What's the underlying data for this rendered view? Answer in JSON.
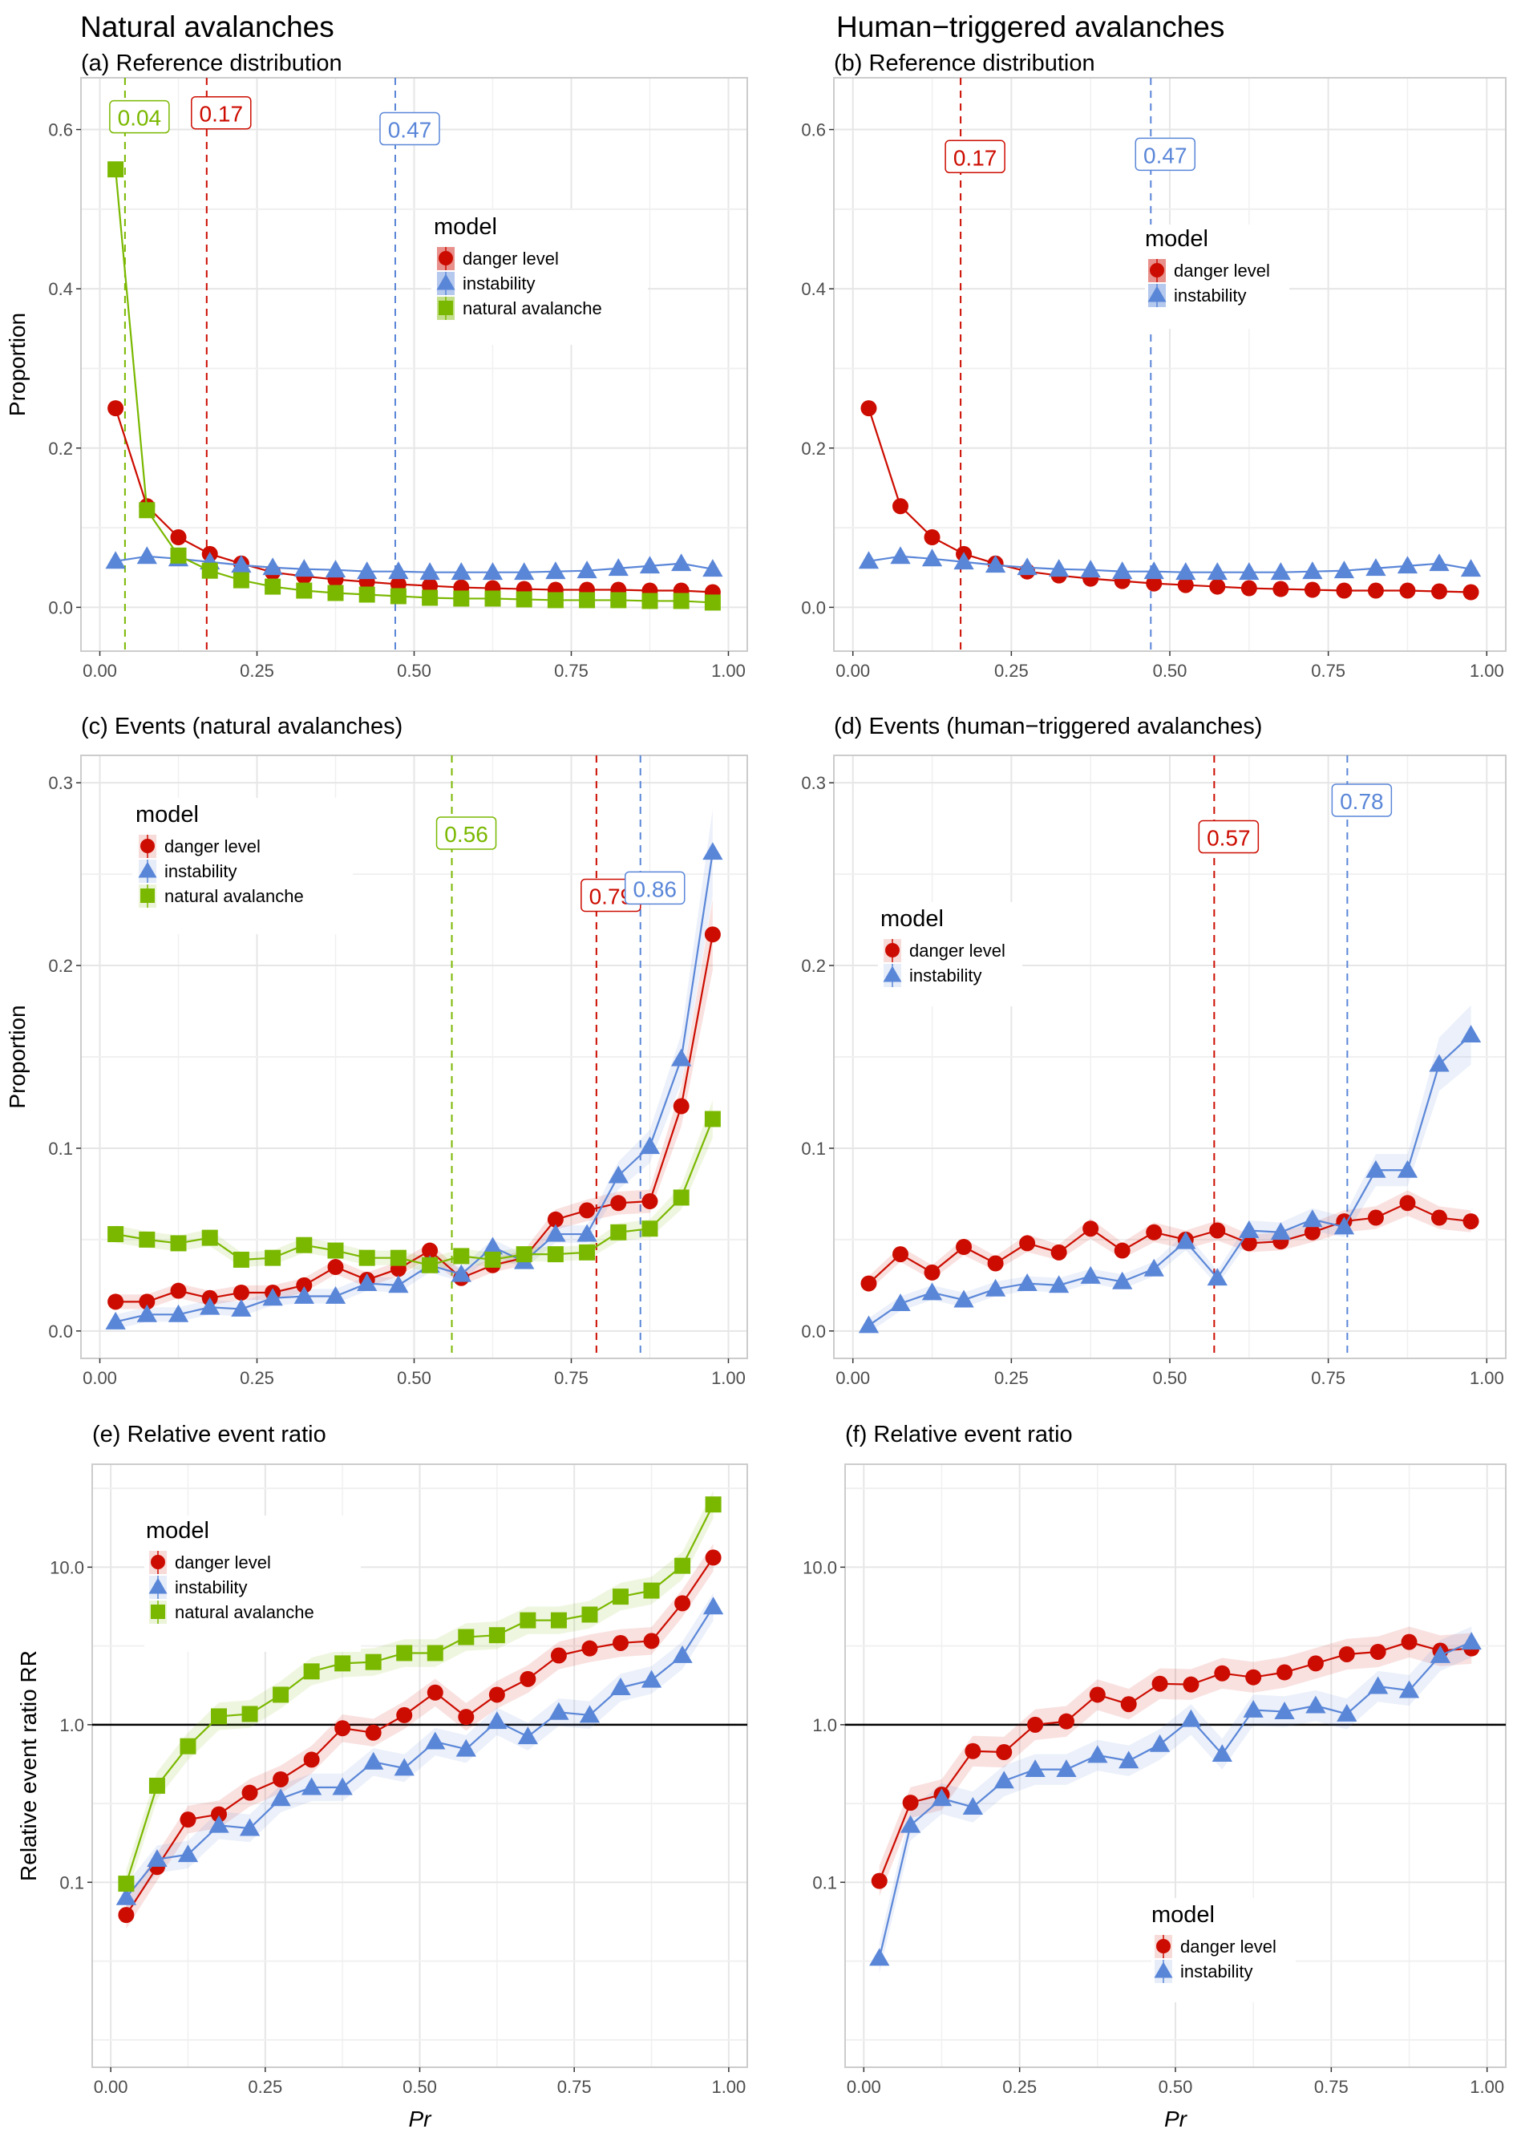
{
  "figure": {
    "column_titles": [
      "Natural avalanches",
      "Human−triggered avalanches"
    ],
    "x_axis_title": "Pr",
    "colors": {
      "danger level": "#cc0c00",
      "instability": "#5a86d8",
      "natural avalanche": "#7ab800",
      "reference_line": "#000000"
    }
  },
  "chart_data": [
    {
      "id": "a",
      "type": "line",
      "title": "(a) Reference distribution",
      "xlabel": "",
      "ylabel": "Proportion",
      "xlim": [
        -0.03,
        1.0
      ],
      "ylim": [
        -0.055,
        0.665
      ],
      "yscale": "linear",
      "xticks": [
        "0.00",
        "0.25",
        "0.50",
        "0.75",
        "1.00"
      ],
      "yticks": [
        "0.0",
        "0.2",
        "0.4",
        "0.6"
      ],
      "ytick_values": [
        0.0,
        0.2,
        0.4,
        0.6
      ],
      "grid": true,
      "legend": {
        "title": "model",
        "position": "center-right",
        "entries": [
          "danger level",
          "instability",
          "natural avalanche"
        ]
      },
      "x": [
        0.025,
        0.075,
        0.125,
        0.175,
        0.225,
        0.275,
        0.325,
        0.375,
        0.425,
        0.475,
        0.525,
        0.575,
        0.625,
        0.675,
        0.725,
        0.775,
        0.825,
        0.875,
        0.925,
        0.975
      ],
      "series": [
        {
          "name": "danger level",
          "marker": "circle",
          "values": [
            0.25,
            0.127,
            0.088,
            0.067,
            0.055,
            0.044,
            0.039,
            0.035,
            0.032,
            0.029,
            0.027,
            0.025,
            0.024,
            0.023,
            0.022,
            0.022,
            0.022,
            0.021,
            0.021,
            0.019
          ]
        },
        {
          "name": "instability",
          "marker": "triangle",
          "values": [
            0.058,
            0.064,
            0.061,
            0.057,
            0.053,
            0.05,
            0.048,
            0.047,
            0.045,
            0.045,
            0.044,
            0.044,
            0.044,
            0.044,
            0.045,
            0.046,
            0.049,
            0.052,
            0.055,
            0.048
          ]
        },
        {
          "name": "natural avalanche",
          "marker": "square",
          "values": [
            0.55,
            0.122,
            0.065,
            0.046,
            0.034,
            0.026,
            0.021,
            0.018,
            0.016,
            0.014,
            0.012,
            0.011,
            0.011,
            0.01,
            0.009,
            0.009,
            0.009,
            0.008,
            0.008,
            0.006
          ]
        }
      ],
      "vlines": [
        {
          "series": "natural avalanche",
          "x": 0.04,
          "label": "0.04",
          "label_y": 0.615
        },
        {
          "series": "danger level",
          "x": 0.17,
          "label": "0.17",
          "label_y": 0.62
        },
        {
          "series": "instability",
          "x": 0.47,
          "label": "0.47",
          "label_y": 0.6
        }
      ]
    },
    {
      "id": "b",
      "type": "line",
      "title": "(b) Reference distribution",
      "xlabel": "",
      "ylabel": "",
      "xlim": [
        -0.03,
        1.0
      ],
      "ylim": [
        -0.055,
        0.665
      ],
      "yscale": "linear",
      "xticks": [
        "0.00",
        "0.25",
        "0.50",
        "0.75",
        "1.00"
      ],
      "yticks": [
        "0.0",
        "0.2",
        "0.4",
        "0.6"
      ],
      "ytick_values": [
        0.0,
        0.2,
        0.4,
        0.6
      ],
      "grid": true,
      "legend": {
        "title": "model",
        "position": "center",
        "entries": [
          "danger level",
          "instability"
        ]
      },
      "x": [
        0.025,
        0.075,
        0.125,
        0.175,
        0.225,
        0.275,
        0.325,
        0.375,
        0.425,
        0.475,
        0.525,
        0.575,
        0.625,
        0.675,
        0.725,
        0.775,
        0.825,
        0.875,
        0.925,
        0.975
      ],
      "series": [
        {
          "name": "danger level",
          "marker": "circle",
          "values": [
            0.25,
            0.127,
            0.088,
            0.067,
            0.055,
            0.045,
            0.04,
            0.036,
            0.033,
            0.03,
            0.028,
            0.026,
            0.024,
            0.023,
            0.022,
            0.021,
            0.021,
            0.021,
            0.02,
            0.019
          ]
        },
        {
          "name": "instability",
          "marker": "triangle",
          "values": [
            0.058,
            0.064,
            0.061,
            0.057,
            0.053,
            0.05,
            0.048,
            0.047,
            0.045,
            0.045,
            0.044,
            0.044,
            0.044,
            0.044,
            0.045,
            0.046,
            0.049,
            0.052,
            0.055,
            0.048
          ]
        }
      ],
      "vlines": [
        {
          "series": "danger level",
          "x": 0.17,
          "label": "0.17",
          "label_y": 0.565
        },
        {
          "series": "instability",
          "x": 0.47,
          "label": "0.47",
          "label_y": 0.568
        }
      ]
    },
    {
      "id": "c",
      "type": "line",
      "title": "(c) Events (natural avalanches)",
      "xlabel": "",
      "ylabel": "Proportion",
      "xlim": [
        -0.03,
        1.0
      ],
      "ylim": [
        -0.015,
        0.315
      ],
      "yscale": "linear",
      "xticks": [
        "0.00",
        "0.25",
        "0.50",
        "0.75",
        "1.00"
      ],
      "yticks": [
        "0.0",
        "0.1",
        "0.2",
        "0.3"
      ],
      "ytick_values": [
        0.0,
        0.1,
        0.2,
        0.3
      ],
      "grid": true,
      "legend": {
        "title": "model",
        "position": "top-left",
        "entries": [
          "danger level",
          "instability",
          "natural avalanche"
        ]
      },
      "x": [
        0.025,
        0.075,
        0.125,
        0.175,
        0.225,
        0.275,
        0.325,
        0.375,
        0.425,
        0.475,
        0.525,
        0.575,
        0.625,
        0.675,
        0.725,
        0.775,
        0.825,
        0.875,
        0.925,
        0.975
      ],
      "series": [
        {
          "name": "danger level",
          "marker": "circle",
          "values": [
            0.016,
            0.016,
            0.022,
            0.018,
            0.021,
            0.021,
            0.025,
            0.035,
            0.028,
            0.034,
            0.044,
            0.029,
            0.036,
            0.04,
            0.061,
            0.066,
            0.07,
            0.071,
            0.123,
            0.217
          ]
        },
        {
          "name": "instability",
          "marker": "triangle",
          "values": [
            0.005,
            0.009,
            0.009,
            0.013,
            0.012,
            0.018,
            0.019,
            0.019,
            0.026,
            0.025,
            0.036,
            0.031,
            0.046,
            0.038,
            0.053,
            0.053,
            0.085,
            0.101,
            0.149,
            0.262
          ]
        },
        {
          "name": "natural avalanche",
          "marker": "square",
          "values": [
            0.053,
            0.05,
            0.048,
            0.051,
            0.039,
            0.04,
            0.047,
            0.044,
            0.04,
            0.04,
            0.036,
            0.041,
            0.039,
            0.042,
            0.042,
            0.043,
            0.054,
            0.056,
            0.073,
            0.116
          ]
        }
      ],
      "vlines": [
        {
          "series": "natural avalanche",
          "x": 0.56,
          "label": "0.56",
          "label_y": 0.272
        },
        {
          "series": "danger level",
          "x": 0.79,
          "label": "0.79",
          "label_y": 0.238
        },
        {
          "series": "instability",
          "x": 0.86,
          "label": "0.86",
          "label_y": 0.242
        }
      ]
    },
    {
      "id": "d",
      "type": "line",
      "title": "(d) Events (human−triggered avalanches)",
      "xlabel": "",
      "ylabel": "",
      "xlim": [
        -0.03,
        1.0
      ],
      "ylim": [
        -0.015,
        0.315
      ],
      "yscale": "linear",
      "xticks": [
        "0.00",
        "0.25",
        "0.50",
        "0.75",
        "1.00"
      ],
      "yticks": [
        "0.0",
        "0.1",
        "0.2",
        "0.3"
      ],
      "ytick_values": [
        0.0,
        0.1,
        0.2,
        0.3
      ],
      "grid": true,
      "legend": {
        "title": "model",
        "position": "center-left",
        "entries": [
          "danger level",
          "instability"
        ]
      },
      "x": [
        0.025,
        0.075,
        0.125,
        0.175,
        0.225,
        0.275,
        0.325,
        0.375,
        0.425,
        0.475,
        0.525,
        0.575,
        0.625,
        0.675,
        0.725,
        0.775,
        0.825,
        0.875,
        0.925,
        0.975
      ],
      "series": [
        {
          "name": "danger level",
          "marker": "circle",
          "values": [
            0.026,
            0.042,
            0.032,
            0.046,
            0.037,
            0.048,
            0.043,
            0.056,
            0.044,
            0.054,
            0.05,
            0.055,
            0.048,
            0.049,
            0.054,
            0.06,
            0.062,
            0.07,
            0.062,
            0.06
          ]
        },
        {
          "name": "instability",
          "marker": "triangle",
          "values": [
            0.003,
            0.015,
            0.021,
            0.017,
            0.023,
            0.026,
            0.025,
            0.03,
            0.027,
            0.034,
            0.049,
            0.029,
            0.055,
            0.054,
            0.061,
            0.057,
            0.088,
            0.088,
            0.146,
            0.162
          ]
        }
      ],
      "vlines": [
        {
          "series": "danger level",
          "x": 0.57,
          "label": "0.57",
          "label_y": 0.27
        },
        {
          "series": "instability",
          "x": 0.78,
          "label": "0.78",
          "label_y": 0.29
        }
      ]
    },
    {
      "id": "e",
      "type": "line",
      "title": "(e) Relative event ratio",
      "xlabel": "Pr",
      "ylabel": "Relative event ratio RR",
      "xlim": [
        -0.03,
        1.0
      ],
      "ylim": [
        0.0067,
        45
      ],
      "yscale": "log",
      "xticks": [
        "0.00",
        "0.25",
        "0.50",
        "0.75",
        "1.00"
      ],
      "yticks": [
        "0.1",
        "1.0",
        "10.0"
      ],
      "ytick_values": [
        0.1,
        1.0,
        10.0
      ],
      "minor_gridlines": [
        0.01,
        0.0316,
        0.316,
        3.16,
        31.6
      ],
      "reference_line": 1.0,
      "grid": true,
      "legend": {
        "title": "model",
        "position": "top-left",
        "entries": [
          "danger level",
          "instability",
          "natural avalanche"
        ]
      },
      "x": [
        0.025,
        0.075,
        0.125,
        0.175,
        0.225,
        0.275,
        0.325,
        0.375,
        0.425,
        0.475,
        0.525,
        0.575,
        0.625,
        0.675,
        0.725,
        0.775,
        0.825,
        0.875,
        0.925,
        0.975
      ],
      "series": [
        {
          "name": "danger level",
          "marker": "circle",
          "values": [
            0.062,
            0.125,
            0.25,
            0.27,
            0.37,
            0.45,
            0.6,
            0.95,
            0.89,
            1.15,
            1.6,
            1.12,
            1.55,
            1.95,
            2.75,
            3.05,
            3.3,
            3.4,
            5.9,
            11.5
          ]
        },
        {
          "name": "instability",
          "marker": "triangle",
          "values": [
            0.08,
            0.14,
            0.15,
            0.23,
            0.22,
            0.34,
            0.4,
            0.4,
            0.58,
            0.53,
            0.78,
            0.7,
            1.05,
            0.84,
            1.2,
            1.15,
            1.72,
            1.92,
            2.75,
            5.6
          ]
        },
        {
          "name": "natural avalanche",
          "marker": "square",
          "values": [
            0.098,
            0.41,
            0.73,
            1.13,
            1.17,
            1.55,
            2.18,
            2.45,
            2.5,
            2.85,
            2.85,
            3.6,
            3.7,
            4.6,
            4.6,
            5.0,
            6.5,
            7.1,
            10.2,
            25
          ]
        }
      ]
    },
    {
      "id": "f",
      "type": "line",
      "title": "(f) Relative event ratio",
      "xlabel": "Pr",
      "ylabel": "",
      "xlim": [
        -0.03,
        1.0
      ],
      "ylim": [
        0.0067,
        45
      ],
      "yscale": "log",
      "xticks": [
        "0.00",
        "0.25",
        "0.50",
        "0.75",
        "1.00"
      ],
      "yticks": [
        "0.1",
        "1.0",
        "10.0"
      ],
      "ytick_values": [
        0.1,
        1.0,
        10.0
      ],
      "minor_gridlines": [
        0.01,
        0.0316,
        0.316,
        3.16,
        31.6
      ],
      "reference_line": 1.0,
      "grid": true,
      "legend": {
        "title": "model",
        "position": "bottom-center",
        "entries": [
          "danger level",
          "instability"
        ]
      },
      "x": [
        0.025,
        0.075,
        0.125,
        0.175,
        0.225,
        0.275,
        0.325,
        0.375,
        0.425,
        0.475,
        0.525,
        0.575,
        0.625,
        0.675,
        0.725,
        0.775,
        0.825,
        0.875,
        0.925,
        0.975
      ],
      "series": [
        {
          "name": "danger level",
          "marker": "circle",
          "values": [
            0.102,
            0.32,
            0.36,
            0.68,
            0.67,
            1.0,
            1.05,
            1.55,
            1.35,
            1.82,
            1.8,
            2.12,
            2.0,
            2.15,
            2.45,
            2.8,
            2.9,
            3.35,
            2.95,
            3.05
          ]
        },
        {
          "name": "instability",
          "marker": "triangle",
          "values": [
            0.033,
            0.23,
            0.34,
            0.3,
            0.44,
            0.52,
            0.52,
            0.64,
            0.59,
            0.75,
            1.08,
            0.65,
            1.24,
            1.21,
            1.32,
            1.17,
            1.75,
            1.65,
            2.75,
            3.35
          ]
        }
      ]
    }
  ]
}
